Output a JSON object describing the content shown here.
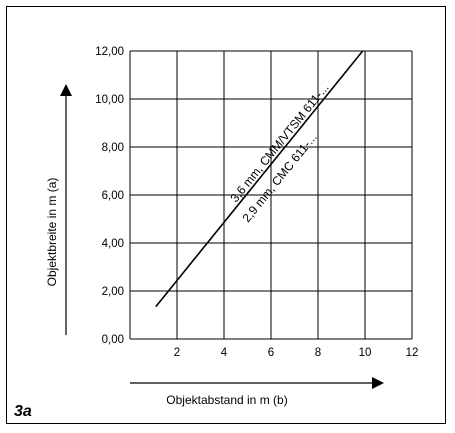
{
  "chart_data": {
    "type": "line",
    "title": "",
    "figure_label": "3a",
    "xlabel": "Objektabstand in m (b)",
    "ylabel": "Objektbreite in m (a)",
    "xlim": [
      0,
      12
    ],
    "ylim": [
      0,
      12
    ],
    "grid": true,
    "x_ticks": [
      "2",
      "4",
      "6",
      "8",
      "10",
      "12"
    ],
    "y_ticks": [
      "0,00",
      "2,00",
      "4,00",
      "6,00",
      "8,00",
      "10,00",
      "12,00"
    ],
    "series": [
      {
        "x": [
          1.1,
          9.9
        ],
        "y": [
          1.35,
          12.0
        ]
      }
    ],
    "annotations": [
      "3,6 mm, CMM/VTSM 611-...",
      "2,9 mm, CMC 611-..."
    ]
  }
}
